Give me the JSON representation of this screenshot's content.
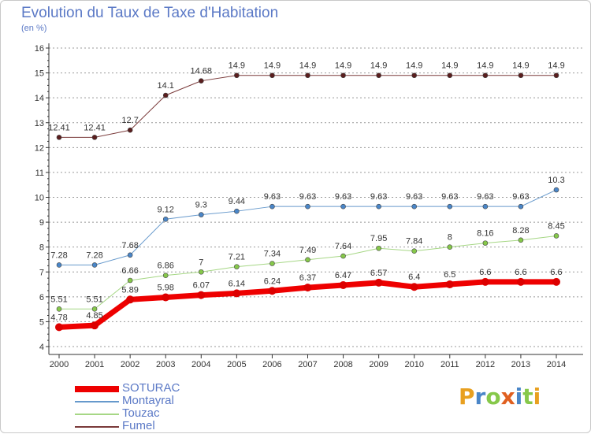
{
  "title": "Evolution du Taux de Taxe d'Habitation",
  "subtitle": "(en %)",
  "chart_data": {
    "type": "line",
    "title": "Evolution du Taux de Taxe d'Habitation",
    "ylabel": "(en %)",
    "xlabel": "",
    "x": [
      "2000",
      "2001",
      "2002",
      "2003",
      "2004",
      "2005",
      "2006",
      "2007",
      "2008",
      "2009",
      "2010",
      "2011",
      "2012",
      "2013",
      "2014"
    ],
    "ylim": [
      4,
      16
    ],
    "yticks": [
      "4",
      "5",
      "6",
      "7",
      "8",
      "9",
      "10",
      "11",
      "12",
      "13",
      "14",
      "15",
      "16"
    ],
    "grid": "horizontal dotted",
    "legend_position": "bottom-left",
    "series": [
      {
        "name": "Fumel",
        "color": "#7a3a3a",
        "marker": "#5a1e1e",
        "width": 1,
        "values": [
          12.41,
          12.41,
          12.7,
          14.1,
          14.68,
          14.9,
          14.9,
          14.9,
          14.9,
          14.9,
          14.9,
          14.9,
          14.9,
          14.9,
          14.9
        ],
        "labels": [
          "12.41",
          "12.41",
          "12.7",
          "14.1",
          "14.68",
          "14.9",
          "14.9",
          "14.9",
          "14.9",
          "14.9",
          "14.9",
          "14.9",
          "14.9",
          "14.9",
          "14.9"
        ]
      },
      {
        "name": "Montayral",
        "color": "#6699cc",
        "marker": "#4a86c8",
        "width": 1,
        "values": [
          7.28,
          7.28,
          7.68,
          9.12,
          9.3,
          9.44,
          9.63,
          9.63,
          9.63,
          9.63,
          9.63,
          9.63,
          9.63,
          9.63,
          10.3
        ],
        "labels": [
          "7.28",
          "7.28",
          "7.68",
          "9.12",
          "9.3",
          "9.44",
          "9.63",
          "9.63",
          "9.63",
          "9.63",
          "9.63",
          "9.63",
          "9.63",
          "9.63",
          "10.3"
        ]
      },
      {
        "name": "Touzac",
        "color": "#a6d785",
        "marker": "#86c84a",
        "width": 1,
        "values": [
          5.51,
          5.51,
          6.66,
          6.86,
          7,
          7.21,
          7.34,
          7.49,
          7.64,
          7.95,
          7.84,
          8,
          8.16,
          8.28,
          8.45
        ],
        "labels": [
          "5.51",
          "5.51",
          "6.66",
          "6.86",
          "7",
          "7.21",
          "7.34",
          "7.49",
          "7.64",
          "7.95",
          "7.84",
          "8",
          "8.16",
          "8.28",
          "8.45"
        ]
      },
      {
        "name": "SOTURAC",
        "color": "#ee0000",
        "marker": "#dd0000",
        "width": 7,
        "values": [
          4.78,
          4.85,
          5.89,
          5.98,
          6.07,
          6.14,
          6.24,
          6.37,
          6.47,
          6.57,
          6.4,
          6.5,
          6.6,
          6.6,
          6.6
        ],
        "labels": [
          "4.78",
          "4.85",
          "5.89",
          "5.98",
          "6.07",
          "6.14",
          "6.24",
          "6.37",
          "6.47",
          "6.57",
          "6.4",
          "6.5",
          "6.6",
          "6.6",
          "6.6"
        ]
      }
    ]
  },
  "legend": [
    {
      "name": "SOTURAC",
      "color": "#ee0000",
      "thickness": 8
    },
    {
      "name": "Montayral",
      "color": "#6699cc",
      "thickness": 2
    },
    {
      "name": "Touzac",
      "color": "#a6d785",
      "thickness": 2
    },
    {
      "name": "Fumel",
      "color": "#7a3a3a",
      "thickness": 2
    }
  ],
  "logo": {
    "letters": [
      {
        "ch": "P",
        "color": "#e8a020"
      },
      {
        "ch": "r",
        "color": "#4a86c8"
      },
      {
        "ch": "o",
        "color": "#86c84a"
      },
      {
        "ch": "x",
        "color": "#e06020"
      },
      {
        "ch": "i",
        "color": "#4a86c8"
      },
      {
        "ch": "t",
        "color": "#86c84a"
      },
      {
        "ch": "i",
        "color": "#e8a020"
      }
    ]
  }
}
